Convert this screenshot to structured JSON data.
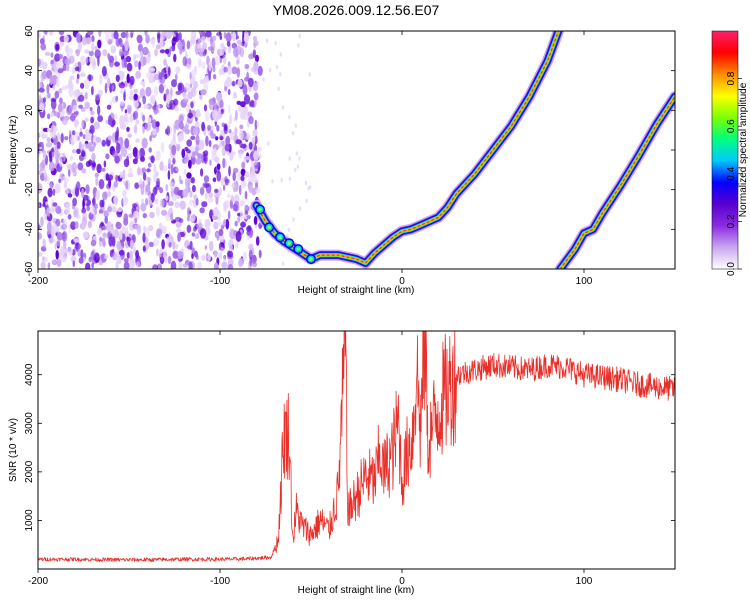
{
  "title": "YM08.2026.009.12.56.E07",
  "colors": {
    "background": "#ffffff",
    "snr_line": "#e8302b",
    "axis": "#000000"
  },
  "chart_data": [
    {
      "type": "heatmap",
      "name": "spectrogram",
      "xlabel": "Height of straight line (km)",
      "ylabel": "Frequency (Hz)",
      "xlim": [
        -200,
        150
      ],
      "ylim": [
        -60,
        60
      ],
      "xticks": [
        "-200",
        "-100",
        "0",
        "100"
      ],
      "xtick_values": [
        -200,
        -100,
        0,
        100
      ],
      "yticks": [
        "-60",
        "-40",
        "-20",
        "0",
        "20",
        "40",
        "60"
      ],
      "ytick_values": [
        -60,
        -40,
        -20,
        0,
        20,
        40,
        60
      ],
      "noise_region": {
        "x_range": [
          -200,
          -80
        ],
        "note": "diffuse purple noise, amplitude 0.05-0.3"
      },
      "traces": [
        {
          "name": "primary-trace",
          "points": [
            [
              -80,
              -28
            ],
            [
              -75,
              -36
            ],
            [
              -70,
              -42
            ],
            [
              -65,
              -46
            ],
            [
              -60,
              -49
            ],
            [
              -55,
              -52
            ],
            [
              -50,
              -55
            ],
            [
              -45,
              -53
            ],
            [
              -40,
              -53
            ],
            [
              -35,
              -53
            ],
            [
              -30,
              -54
            ],
            [
              -25,
              -55
            ],
            [
              -20,
              -57
            ],
            [
              -15,
              -52
            ],
            [
              -10,
              -48
            ],
            [
              -5,
              -44
            ],
            [
              0,
              -41
            ],
            [
              5,
              -40
            ],
            [
              10,
              -38
            ],
            [
              15,
              -36
            ],
            [
              20,
              -34
            ],
            [
              25,
              -29
            ],
            [
              30,
              -22
            ],
            [
              40,
              -12
            ],
            [
              50,
              0
            ],
            [
              60,
              12
            ],
            [
              70,
              27
            ],
            [
              80,
              45
            ],
            [
              86,
              60
            ]
          ]
        },
        {
          "name": "secondary-trace",
          "points": [
            [
              87,
              -60
            ],
            [
              95,
              -50
            ],
            [
              100,
              -42
            ],
            [
              105,
              -40
            ],
            [
              110,
              -32
            ],
            [
              120,
              -18
            ],
            [
              130,
              -3
            ],
            [
              140,
              13
            ],
            [
              150,
              27
            ]
          ]
        }
      ],
      "colorbar": {
        "label": "Normalized spectral amplitude",
        "range": [
          0,
          1
        ],
        "ticks": [
          "0.0",
          "0.2",
          "0.4",
          "0.6",
          "0.8"
        ],
        "tick_values": [
          0,
          0.2,
          0.4,
          0.6,
          0.8
        ],
        "colormap": [
          "#ffffff",
          "#c9a6f0",
          "#8a2be2",
          "#5a00d0",
          "#0000ff",
          "#00c8ff",
          "#00ff80",
          "#7dff00",
          "#ffff00",
          "#ff8c00",
          "#ff0000",
          "#ff1f6e"
        ]
      }
    },
    {
      "type": "line",
      "name": "snr",
      "xlabel": "Height of straight line (km)",
      "ylabel": "SNR (10 * v/v)",
      "xlim": [
        -200,
        150
      ],
      "ylim": [
        0,
        4900
      ],
      "xticks": [
        "-200",
        "-100",
        "0",
        "100"
      ],
      "xtick_values": [
        -200,
        -100,
        0,
        100
      ],
      "yticks": [
        "1000",
        "2000",
        "3000",
        "4000"
      ],
      "ytick_values": [
        1000,
        2000,
        3000,
        4000
      ],
      "series": [
        {
          "name": "SNR",
          "x": [
            -200,
            -180,
            -160,
            -140,
            -120,
            -100,
            -85,
            -72,
            -68,
            -65,
            -62,
            -60,
            -58,
            -55,
            -50,
            -45,
            -40,
            -35,
            -31,
            -30,
            -29,
            -25,
            -20,
            -15,
            -12,
            -10,
            -5,
            -2,
            0,
            3,
            6,
            8,
            10,
            13,
            14,
            15,
            20,
            25,
            30,
            40,
            50,
            60,
            70,
            80,
            90,
            100,
            110,
            120,
            130,
            140,
            150
          ],
          "y": [
            200,
            200,
            190,
            190,
            200,
            200,
            210,
            240,
            600,
            2750,
            2800,
            600,
            1200,
            900,
            700,
            1000,
            800,
            1600,
            4800,
            1400,
            1200,
            1500,
            1900,
            1800,
            2400,
            2000,
            2400,
            3050,
            1800,
            2400,
            2800,
            4200,
            2900,
            4900,
            2600,
            2700,
            3300,
            3700,
            4000,
            4100,
            4200,
            4150,
            4100,
            4200,
            4150,
            4000,
            3950,
            3900,
            3800,
            3750,
            3700
          ]
        }
      ]
    }
  ]
}
